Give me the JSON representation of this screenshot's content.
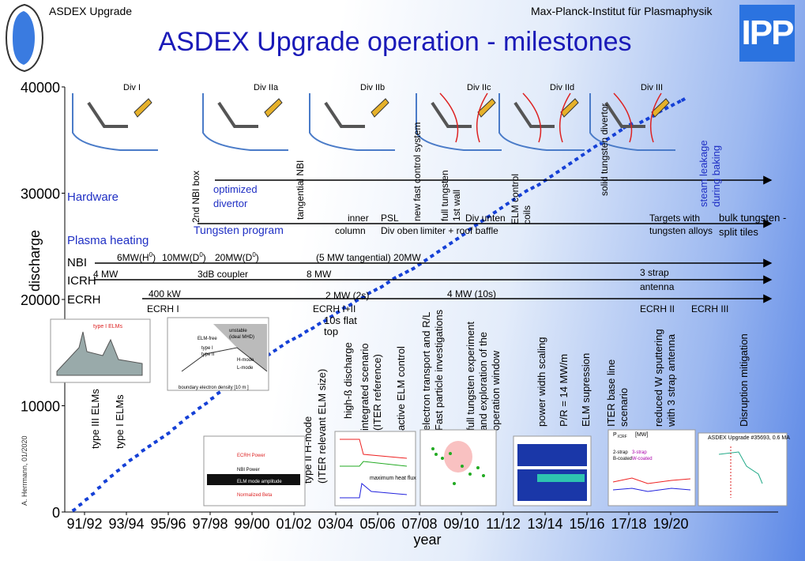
{
  "header": {
    "left": "ASDEX Upgrade",
    "right": "Max-Planck-Institut für Plasmaphysik",
    "logo": "IPP"
  },
  "title": "ASDEX Upgrade operation - milestones",
  "credit": "A. Herrmann, 01/2020",
  "colors": {
    "title": "#1a1ab8",
    "points": "#1540d6",
    "blue_label": "#1f2fc4",
    "arrow": "#000000"
  },
  "divertors": [
    "Div I",
    "Div IIa",
    "Div IIb",
    "Div IIc",
    "Div IId",
    "Div III"
  ],
  "timeline": {
    "hardware_label": "Hardware",
    "hardware_notes": [
      {
        "text": "2nd NBI box",
        "rot": true
      },
      {
        "text": "optimized",
        "rot": false
      },
      {
        "text": "divertor",
        "rot": false
      },
      {
        "text": "tangential NBI",
        "rot": true
      },
      {
        "text": "new fast control system",
        "rot": true
      },
      {
        "text": "full tungsten",
        "rot": true
      },
      {
        "text": "1st wall",
        "rot": true
      },
      {
        "text": "ELM control",
        "rot": true
      },
      {
        "text": "coils",
        "rot": true
      },
      {
        "text": "solid tungsten divertor",
        "rot": true
      },
      {
        "text": "steam leakage",
        "rot": true
      },
      {
        "text": "during baking",
        "rot": true
      }
    ],
    "program_label": "Tungsten program",
    "program_notes": [
      "inner",
      "column",
      "PSL",
      "Div oben",
      "Div unten",
      "limiter + roof baffle",
      "Targets with",
      "tungsten alloys",
      "bulk tungsten -",
      "split tiles"
    ],
    "heating_label": "Plasma heating",
    "nbi_label": "NBI",
    "nbi_notes": [
      "6MW(H",
      "0",
      ")",
      "10MW(D",
      "0",
      ")",
      "20MW(D",
      "0",
      ")",
      "(5 MW tangential) 20MW"
    ],
    "icrh_label": "ICRH",
    "icrh_notes": [
      "4 MW",
      "3dB coupler",
      "8 MW",
      "3 strap",
      "antenna"
    ],
    "ecrh_label": "ECRH",
    "ecrh_notes": [
      "400 kW",
      "ECRH I",
      "2 MW (2s)",
      "ECRH I+II",
      "4 MW (10s)",
      "ECRH II",
      "ECRH III",
      "10s flat",
      "top"
    ]
  },
  "milestones": [
    "type III ELMs",
    "type I ELMs",
    "type II H-mode",
    "(ITER relevant ELM size)",
    "high-ß discharge",
    "integrated scenario",
    "(ITER reference)",
    "active ELM control",
    "electron transport and R/L",
    "Fast particle investigations",
    "full tungsten experiment",
    "and exploration of the",
    "operation window",
    "power width scaling",
    "P/R = 14 MW/m",
    "ELM supression",
    "ITER base line",
    "scenario",
    "reduced W sputtering",
    "with 3 strap antenna",
    "Disruption mitigation"
  ],
  "insets": {
    "ecrh_power": "ECRH Power",
    "nbi_power": "NBI Power",
    "elm_amp": "ELM mode amplitude",
    "norm_beta": "Normalized Beta",
    "max_heat_flux": "maximum heat flux",
    "type_i_elms": "type I ELMs",
    "disruption_title": "ASDEX Upgrade #35693, 0.6 MA",
    "pedestal_labels": [
      "unstable",
      "(ideal MHD)",
      "ELM-free",
      "type I",
      "type II",
      "H-mode",
      "L-mode"
    ],
    "pedestal_xlabel": "boundary electron density [10   m  ]",
    "w_labels": [
      "P",
      "ICRF",
      "[MW]",
      "2-strap",
      "3-strap",
      "B-coated",
      "W-coated"
    ]
  },
  "chart_data": {
    "type": "scatter",
    "title": "ASDEX Upgrade operation - milestones",
    "xlabel": "year",
    "ylabel": "discharge",
    "categories": [
      "91/92",
      "93/94",
      "95/96",
      "97/98",
      "99/00",
      "01/02",
      "03/04",
      "05/06",
      "07/08",
      "09/10",
      "11/12",
      "13/14",
      "15/16",
      "17/18",
      "19/20"
    ],
    "ylim": [
      0,
      40000
    ],
    "yticks": [
      0,
      10000,
      20000,
      30000,
      40000
    ],
    "ytick_labels": [
      "0",
      "10000",
      "20000",
      "30000",
      "40000"
    ],
    "series": [
      {
        "values": [
          [
            1991.0,
            200
          ],
          [
            1991.3,
            700
          ],
          [
            1991.6,
            1200
          ],
          [
            1991.9,
            1700
          ],
          [
            1992.2,
            2300
          ],
          [
            1992.5,
            2900
          ],
          [
            1992.8,
            3400
          ],
          [
            1993.1,
            3900
          ],
          [
            1993.4,
            4400
          ],
          [
            1993.7,
            4900
          ],
          [
            1994.0,
            5300
          ],
          [
            1994.3,
            5800
          ],
          [
            1994.6,
            6200
          ],
          [
            1994.9,
            6600
          ],
          [
            1995.2,
            7000
          ],
          [
            1995.5,
            7400
          ],
          [
            1995.8,
            7900
          ],
          [
            1996.1,
            8400
          ],
          [
            1996.4,
            8900
          ],
          [
            1996.7,
            9300
          ],
          [
            1997.0,
            9800
          ],
          [
            1997.3,
            10200
          ],
          [
            1997.6,
            10700
          ],
          [
            1997.9,
            11200
          ],
          [
            1998.2,
            11700
          ],
          [
            1998.5,
            12200
          ],
          [
            1998.8,
            12700
          ],
          [
            1999.1,
            13100
          ],
          [
            1999.4,
            13500
          ],
          [
            1999.7,
            14000
          ],
          [
            2000.0,
            14400
          ],
          [
            2000.3,
            14800
          ],
          [
            2000.6,
            15200
          ],
          [
            2000.9,
            15600
          ],
          [
            2001.2,
            16000
          ],
          [
            2001.5,
            16300
          ],
          [
            2001.8,
            16600
          ],
          [
            2002.1,
            17000
          ],
          [
            2002.4,
            17300
          ],
          [
            2002.7,
            17700
          ],
          [
            2003.0,
            18000
          ],
          [
            2003.3,
            18400
          ],
          [
            2003.6,
            18800
          ],
          [
            2003.9,
            19200
          ],
          [
            2004.2,
            19500
          ],
          [
            2004.5,
            19900
          ],
          [
            2004.8,
            20200
          ],
          [
            2005.1,
            20600
          ],
          [
            2005.4,
            20900
          ],
          [
            2005.7,
            21200
          ],
          [
            2006.0,
            21600
          ],
          [
            2006.3,
            22000
          ],
          [
            2006.6,
            22300
          ],
          [
            2006.9,
            22600
          ],
          [
            2007.2,
            22900
          ],
          [
            2007.5,
            23300
          ],
          [
            2007.8,
            23700
          ],
          [
            2008.1,
            24100
          ],
          [
            2008.4,
            24500
          ],
          [
            2008.7,
            24900
          ],
          [
            2009.0,
            25300
          ],
          [
            2009.3,
            25700
          ],
          [
            2009.6,
            26100
          ],
          [
            2009.9,
            26600
          ],
          [
            2010.2,
            27000
          ],
          [
            2010.5,
            27400
          ],
          [
            2010.8,
            27800
          ],
          [
            2011.1,
            28200
          ],
          [
            2011.4,
            28600
          ],
          [
            2011.7,
            29000
          ],
          [
            2012.0,
            29400
          ],
          [
            2012.3,
            29800
          ],
          [
            2012.6,
            30200
          ],
          [
            2012.9,
            30500
          ],
          [
            2013.2,
            30800
          ],
          [
            2013.5,
            31200
          ],
          [
            2013.8,
            31600
          ],
          [
            2014.1,
            32000
          ],
          [
            2014.4,
            32400
          ],
          [
            2014.7,
            32800
          ],
          [
            2015.0,
            33200
          ],
          [
            2015.3,
            33600
          ],
          [
            2015.6,
            34000
          ],
          [
            2015.9,
            34400
          ],
          [
            2016.2,
            34700
          ],
          [
            2016.5,
            35100
          ],
          [
            2016.8,
            35500
          ],
          [
            2017.1,
            35900
          ],
          [
            2017.3,
            36200
          ],
          [
            2017.6,
            36500
          ],
          [
            2018.1,
            36700
          ],
          [
            2018.4,
            37000
          ],
          [
            2018.7,
            37300
          ],
          [
            2019.0,
            37700
          ],
          [
            2019.3,
            38000
          ],
          [
            2019.6,
            38300
          ],
          [
            2019.9,
            38600
          ],
          [
            2020.1,
            38800
          ]
        ]
      }
    ],
    "grid": false,
    "legend": "none"
  }
}
